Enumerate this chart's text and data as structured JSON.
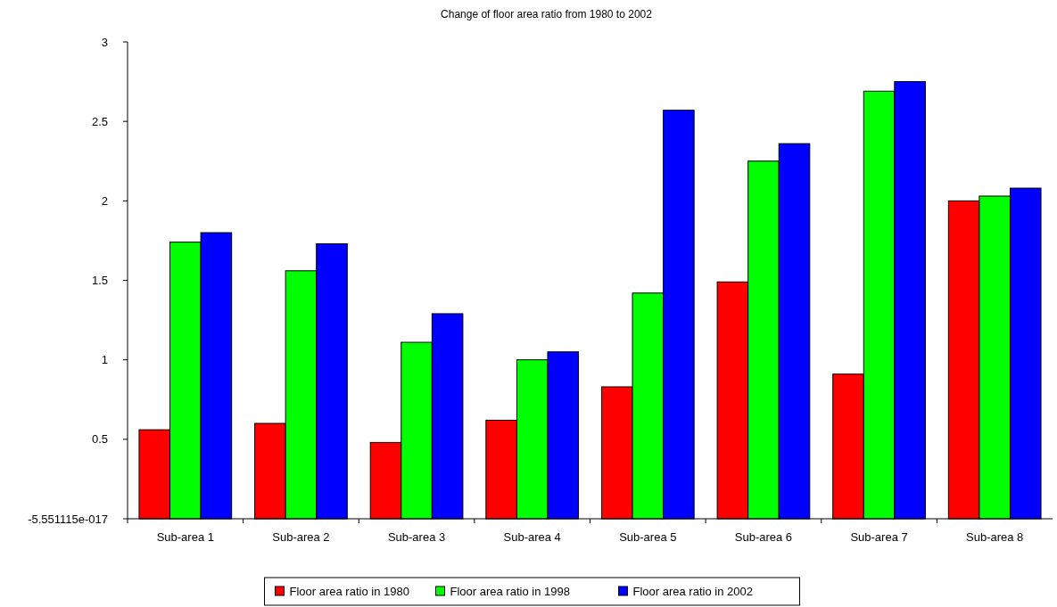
{
  "chart_data": {
    "type": "bar",
    "title": "Change of floor area ratio from 1980 to 2002",
    "categories": [
      "Sub-area 1",
      "Sub-area 2",
      "Sub-area 3",
      "Sub-area 4",
      "Sub-area 5",
      "Sub-area 6",
      "Sub-area 7",
      "Sub-area 8"
    ],
    "series": [
      {
        "name": "Floor area ratio in 1980",
        "color": "#ff0000",
        "values": [
          0.56,
          0.6,
          0.48,
          0.62,
          0.83,
          1.49,
          0.91,
          2.0
        ]
      },
      {
        "name": "Floor area ratio in 1998",
        "color": "#00ff00",
        "values": [
          1.74,
          1.56,
          1.11,
          1.0,
          1.42,
          2.25,
          2.69,
          2.03
        ]
      },
      {
        "name": "Floor area ratio in 2002",
        "color": "#0000ff",
        "values": [
          1.8,
          1.73,
          1.29,
          1.05,
          2.57,
          2.36,
          2.75,
          2.08
        ]
      }
    ],
    "ylim": [
      0,
      3
    ],
    "yticks": [
      {
        "value": 0,
        "label": "-5.551115e-017"
      },
      0.5,
      1,
      1.5,
      2,
      2.5,
      3
    ],
    "grid": false,
    "legend": "bottom"
  }
}
